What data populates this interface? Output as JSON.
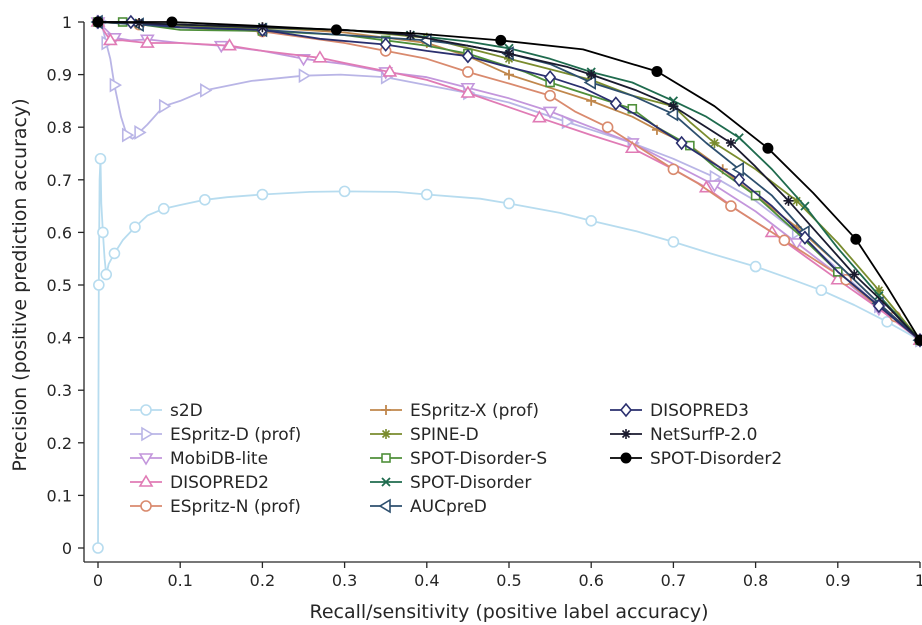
{
  "chart_data": {
    "type": "line",
    "title": "",
    "xlabel": "Recall/sensitivity (positive label accuracy)",
    "ylabel": "Precision (positive prediction accuracy)",
    "xlim": [
      0,
      1
    ],
    "ylim": [
      0,
      1
    ],
    "xticks": [
      "0",
      "0.1",
      "0.2",
      "0.3",
      "0.4",
      "0.5",
      "0.6",
      "0.7",
      "0.8",
      "0.9",
      "1"
    ],
    "yticks": [
      "0",
      "0.1",
      "0.2",
      "0.3",
      "0.4",
      "0.5",
      "0.6",
      "0.7",
      "0.8",
      "0.9",
      "1"
    ],
    "grid": false,
    "legend_position": "lower-left",
    "series": [
      {
        "name": "s2D",
        "color": "#b7dcef",
        "marker": "circle-open",
        "points": [
          [
            0.0,
            0.0
          ],
          [
            0.001,
            0.5
          ],
          [
            0.002,
            0.7
          ],
          [
            0.003,
            0.74
          ],
          [
            0.004,
            0.655
          ],
          [
            0.006,
            0.6
          ],
          [
            0.008,
            0.55
          ],
          [
            0.01,
            0.52
          ],
          [
            0.013,
            0.54
          ],
          [
            0.02,
            0.56
          ],
          [
            0.03,
            0.585
          ],
          [
            0.045,
            0.61
          ],
          [
            0.06,
            0.632
          ],
          [
            0.08,
            0.645
          ],
          [
            0.1,
            0.652
          ],
          [
            0.13,
            0.662
          ],
          [
            0.157,
            0.667
          ],
          [
            0.2,
            0.672
          ],
          [
            0.258,
            0.677
          ],
          [
            0.3,
            0.678
          ],
          [
            0.363,
            0.677
          ],
          [
            0.4,
            0.672
          ],
          [
            0.465,
            0.664
          ],
          [
            0.5,
            0.655
          ],
          [
            0.562,
            0.637
          ],
          [
            0.6,
            0.622
          ],
          [
            0.655,
            0.602
          ],
          [
            0.7,
            0.582
          ],
          [
            0.745,
            0.56
          ],
          [
            0.8,
            0.535
          ],
          [
            0.84,
            0.513
          ],
          [
            0.88,
            0.49
          ],
          [
            0.92,
            0.462
          ],
          [
            0.96,
            0.43
          ],
          [
            1.0,
            0.395
          ]
        ]
      },
      {
        "name": "ESpritz-D (prof)",
        "color": "#b9b5e6",
        "marker": "triangle-right",
        "points": [
          [
            0.004,
            1.0
          ],
          [
            0.01,
            0.96
          ],
          [
            0.015,
            0.93
          ],
          [
            0.02,
            0.88
          ],
          [
            0.028,
            0.82
          ],
          [
            0.035,
            0.785
          ],
          [
            0.042,
            0.778
          ],
          [
            0.05,
            0.79
          ],
          [
            0.06,
            0.805
          ],
          [
            0.08,
            0.84
          ],
          [
            0.1,
            0.85
          ],
          [
            0.13,
            0.87
          ],
          [
            0.187,
            0.888
          ],
          [
            0.25,
            0.898
          ],
          [
            0.295,
            0.9
          ],
          [
            0.35,
            0.895
          ],
          [
            0.4,
            0.88
          ],
          [
            0.45,
            0.865
          ],
          [
            0.5,
            0.847
          ],
          [
            0.57,
            0.81
          ],
          [
            0.6,
            0.795
          ],
          [
            0.65,
            0.77
          ],
          [
            0.7,
            0.74
          ],
          [
            0.75,
            0.705
          ],
          [
            0.8,
            0.66
          ],
          [
            0.85,
            0.6
          ],
          [
            0.9,
            0.53
          ],
          [
            0.95,
            0.46
          ],
          [
            1.0,
            0.395
          ]
        ]
      },
      {
        "name": "MobiDB-lite",
        "color": "#c396dc",
        "marker": "triangle-down",
        "points": [
          [
            0.0,
            1.0
          ],
          [
            0.02,
            0.97
          ],
          [
            0.04,
            0.965
          ],
          [
            0.06,
            0.967
          ],
          [
            0.1,
            0.96
          ],
          [
            0.15,
            0.955
          ],
          [
            0.2,
            0.945
          ],
          [
            0.25,
            0.93
          ],
          [
            0.3,
            0.92
          ],
          [
            0.35,
            0.905
          ],
          [
            0.4,
            0.895
          ],
          [
            0.45,
            0.875
          ],
          [
            0.5,
            0.855
          ],
          [
            0.55,
            0.83
          ],
          [
            0.6,
            0.8
          ],
          [
            0.65,
            0.77
          ],
          [
            0.7,
            0.73
          ],
          [
            0.75,
            0.69
          ],
          [
            0.8,
            0.64
          ],
          [
            0.85,
            0.58
          ],
          [
            0.9,
            0.52
          ],
          [
            0.95,
            0.455
          ],
          [
            1.0,
            0.395
          ]
        ]
      },
      {
        "name": "DISOPRED2",
        "color": "#e07bb5",
        "marker": "triangle-up",
        "points": [
          [
            0.0,
            1.0
          ],
          [
            0.015,
            0.965
          ],
          [
            0.03,
            0.965
          ],
          [
            0.06,
            0.96
          ],
          [
            0.1,
            0.96
          ],
          [
            0.16,
            0.955
          ],
          [
            0.2,
            0.945
          ],
          [
            0.27,
            0.932
          ],
          [
            0.3,
            0.922
          ],
          [
            0.355,
            0.905
          ],
          [
            0.4,
            0.89
          ],
          [
            0.45,
            0.865
          ],
          [
            0.5,
            0.838
          ],
          [
            0.537,
            0.818
          ],
          [
            0.6,
            0.785
          ],
          [
            0.65,
            0.76
          ],
          [
            0.7,
            0.72
          ],
          [
            0.74,
            0.685
          ],
          [
            0.78,
            0.64
          ],
          [
            0.82,
            0.6
          ],
          [
            0.86,
            0.555
          ],
          [
            0.9,
            0.51
          ],
          [
            0.95,
            0.455
          ],
          [
            1.0,
            0.395
          ]
        ]
      },
      {
        "name": "ESpritz-N (prof)",
        "color": "#d98a6e",
        "marker": "circle-open",
        "points": [
          [
            0.0,
            1.0
          ],
          [
            0.05,
            0.995
          ],
          [
            0.1,
            0.99
          ],
          [
            0.2,
            0.982
          ],
          [
            0.3,
            0.96
          ],
          [
            0.35,
            0.945
          ],
          [
            0.4,
            0.93
          ],
          [
            0.45,
            0.905
          ],
          [
            0.5,
            0.883
          ],
          [
            0.55,
            0.86
          ],
          [
            0.58,
            0.83
          ],
          [
            0.62,
            0.8
          ],
          [
            0.65,
            0.77
          ],
          [
            0.7,
            0.72
          ],
          [
            0.73,
            0.693
          ],
          [
            0.77,
            0.65
          ],
          [
            0.8,
            0.62
          ],
          [
            0.835,
            0.585
          ],
          [
            0.87,
            0.55
          ],
          [
            0.91,
            0.51
          ],
          [
            0.94,
            0.47
          ],
          [
            0.97,
            0.44
          ],
          [
            1.0,
            0.395
          ]
        ]
      },
      {
        "name": "ESpritz-X (prof)",
        "color": "#c0874c",
        "marker": "plus",
        "points": [
          [
            0.0,
            1.0
          ],
          [
            0.05,
            0.998
          ],
          [
            0.1,
            0.995
          ],
          [
            0.2,
            0.99
          ],
          [
            0.3,
            0.98
          ],
          [
            0.4,
            0.96
          ],
          [
            0.45,
            0.935
          ],
          [
            0.5,
            0.9
          ],
          [
            0.55,
            0.875
          ],
          [
            0.6,
            0.85
          ],
          [
            0.65,
            0.82
          ],
          [
            0.68,
            0.795
          ],
          [
            0.72,
            0.765
          ],
          [
            0.76,
            0.72
          ],
          [
            0.8,
            0.67
          ],
          [
            0.85,
            0.61
          ],
          [
            0.9,
            0.54
          ],
          [
            0.95,
            0.465
          ],
          [
            1.0,
            0.395
          ]
        ]
      },
      {
        "name": "SPINE-D",
        "color": "#7a8c2e",
        "marker": "star",
        "points": [
          [
            0.0,
            1.0
          ],
          [
            0.05,
            0.995
          ],
          [
            0.1,
            0.992
          ],
          [
            0.2,
            0.988
          ],
          [
            0.3,
            0.985
          ],
          [
            0.4,
            0.97
          ],
          [
            0.45,
            0.95
          ],
          [
            0.5,
            0.93
          ],
          [
            0.55,
            0.91
          ],
          [
            0.6,
            0.89
          ],
          [
            0.65,
            0.86
          ],
          [
            0.7,
            0.84
          ],
          [
            0.72,
            0.81
          ],
          [
            0.75,
            0.77
          ],
          [
            0.8,
            0.72
          ],
          [
            0.85,
            0.66
          ],
          [
            0.9,
            0.58
          ],
          [
            0.95,
            0.49
          ],
          [
            1.0,
            0.395
          ]
        ]
      },
      {
        "name": "SPOT-Disorder-S",
        "color": "#4f8f3a",
        "marker": "square-open",
        "points": [
          [
            0.0,
            1.0
          ],
          [
            0.03,
            1.0
          ],
          [
            0.1,
            0.985
          ],
          [
            0.2,
            0.983
          ],
          [
            0.3,
            0.975
          ],
          [
            0.35,
            0.965
          ],
          [
            0.4,
            0.955
          ],
          [
            0.45,
            0.94
          ],
          [
            0.52,
            0.905
          ],
          [
            0.55,
            0.885
          ],
          [
            0.6,
            0.86
          ],
          [
            0.65,
            0.835
          ],
          [
            0.68,
            0.8
          ],
          [
            0.72,
            0.765
          ],
          [
            0.75,
            0.725
          ],
          [
            0.8,
            0.67
          ],
          [
            0.85,
            0.6
          ],
          [
            0.9,
            0.525
          ],
          [
            0.95,
            0.46
          ],
          [
            1.0,
            0.395
          ]
        ]
      },
      {
        "name": "SPOT-Disorder",
        "color": "#1f6b4e",
        "marker": "x",
        "points": [
          [
            0.0,
            1.0
          ],
          [
            0.05,
            0.998
          ],
          [
            0.1,
            0.995
          ],
          [
            0.2,
            0.99
          ],
          [
            0.3,
            0.985
          ],
          [
            0.38,
            0.975
          ],
          [
            0.45,
            0.963
          ],
          [
            0.5,
            0.95
          ],
          [
            0.55,
            0.93
          ],
          [
            0.6,
            0.905
          ],
          [
            0.65,
            0.885
          ],
          [
            0.7,
            0.85
          ],
          [
            0.74,
            0.82
          ],
          [
            0.78,
            0.78
          ],
          [
            0.82,
            0.72
          ],
          [
            0.86,
            0.65
          ],
          [
            0.9,
            0.57
          ],
          [
            0.95,
            0.48
          ],
          [
            1.0,
            0.395
          ]
        ]
      },
      {
        "name": "AUCpreD",
        "color": "#2d4f6e",
        "marker": "triangle-left",
        "points": [
          [
            0.0,
            1.0
          ],
          [
            0.05,
            0.995
          ],
          [
            0.1,
            0.99
          ],
          [
            0.2,
            0.985
          ],
          [
            0.3,
            0.975
          ],
          [
            0.4,
            0.965
          ],
          [
            0.45,
            0.955
          ],
          [
            0.5,
            0.94
          ],
          [
            0.55,
            0.92
          ],
          [
            0.6,
            0.885
          ],
          [
            0.65,
            0.86
          ],
          [
            0.7,
            0.825
          ],
          [
            0.74,
            0.77
          ],
          [
            0.78,
            0.72
          ],
          [
            0.82,
            0.67
          ],
          [
            0.86,
            0.6
          ],
          [
            0.9,
            0.54
          ],
          [
            0.95,
            0.465
          ],
          [
            1.0,
            0.395
          ]
        ]
      },
      {
        "name": "DISOPRED3",
        "color": "#2a2f6e",
        "marker": "diamond-open",
        "points": [
          [
            0.0,
            1.0
          ],
          [
            0.04,
            1.0
          ],
          [
            0.1,
            0.99
          ],
          [
            0.2,
            0.985
          ],
          [
            0.27,
            0.968
          ],
          [
            0.35,
            0.957
          ],
          [
            0.4,
            0.945
          ],
          [
            0.45,
            0.935
          ],
          [
            0.49,
            0.918
          ],
          [
            0.55,
            0.895
          ],
          [
            0.59,
            0.875
          ],
          [
            0.63,
            0.845
          ],
          [
            0.67,
            0.81
          ],
          [
            0.71,
            0.77
          ],
          [
            0.74,
            0.74
          ],
          [
            0.78,
            0.7
          ],
          [
            0.82,
            0.65
          ],
          [
            0.86,
            0.59
          ],
          [
            0.9,
            0.525
          ],
          [
            0.95,
            0.46
          ],
          [
            1.0,
            0.395
          ]
        ]
      },
      {
        "name": "NetSurfP-2.0",
        "color": "#1a1a2e",
        "marker": "star",
        "points": [
          [
            0.0,
            1.0
          ],
          [
            0.05,
            0.998
          ],
          [
            0.1,
            0.995
          ],
          [
            0.2,
            0.99
          ],
          [
            0.3,
            0.985
          ],
          [
            0.38,
            0.975
          ],
          [
            0.45,
            0.955
          ],
          [
            0.5,
            0.94
          ],
          [
            0.57,
            0.915
          ],
          [
            0.6,
            0.9
          ],
          [
            0.655,
            0.87
          ],
          [
            0.7,
            0.84
          ],
          [
            0.735,
            0.805
          ],
          [
            0.77,
            0.77
          ],
          [
            0.8,
            0.725
          ],
          [
            0.84,
            0.66
          ],
          [
            0.88,
            0.59
          ],
          [
            0.92,
            0.52
          ],
          [
            0.96,
            0.46
          ],
          [
            1.0,
            0.395
          ]
        ]
      },
      {
        "name": "SPOT-Disorder2",
        "color": "#000000",
        "marker": "circle-filled",
        "points": [
          [
            0.0,
            1.0
          ],
          [
            0.09,
            1.0
          ],
          [
            0.19,
            0.993
          ],
          [
            0.29,
            0.985
          ],
          [
            0.39,
            0.978
          ],
          [
            0.49,
            0.965
          ],
          [
            0.59,
            0.948
          ],
          [
            0.68,
            0.906
          ],
          [
            0.75,
            0.84
          ],
          [
            0.815,
            0.76
          ],
          [
            0.87,
            0.675
          ],
          [
            0.922,
            0.587
          ],
          [
            0.96,
            0.497
          ],
          [
            1.0,
            0.395
          ]
        ]
      }
    ]
  }
}
